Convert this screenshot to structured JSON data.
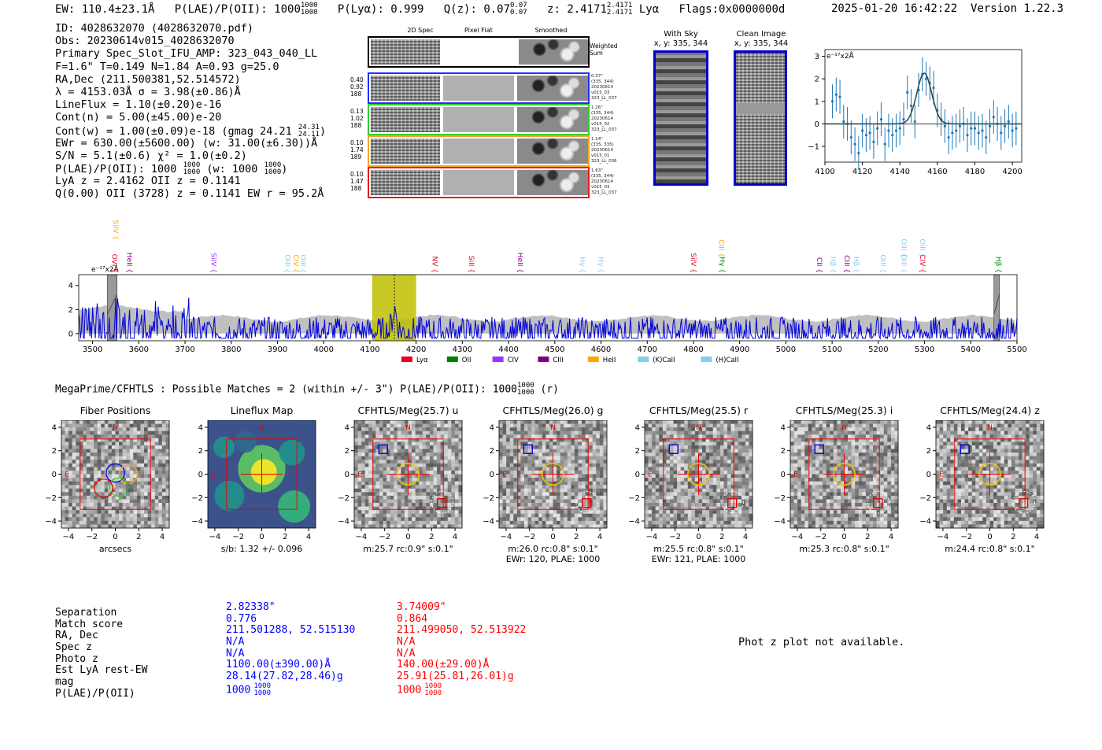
{
  "header": {
    "ew": "EW: 110.4±23.1Å",
    "plae": "P(LAE)/P(OII): 1000",
    "plae_hi": "1000",
    "plae_lo": "1000",
    "plya": "P(Lyα): 0.999",
    "qz": "Q(z): 0.07",
    "qz_hi": "0.07",
    "qz_lo": "0.07",
    "z": "z: 2.4171",
    "z_hi": "2.4171",
    "z_lo": "2.4171",
    "line": "Lyα",
    "flags": "Flags:0x0000000d",
    "datetime": "2025-01-20 16:42:22",
    "version": "Version 1.22.3"
  },
  "info": {
    "id": "ID: 4028632070 (4028632070.pdf)",
    "obs": "Obs: 20230614v015_4028632070",
    "primary": "Primary Spec_Slot_IFU_AMP: 323_043_040_LL",
    "fta": "F=1.6\"  T=0.149  N=1.84  A=0.93  g=25.0",
    "radec": "RA,Dec (211.500381,52.514572)",
    "lambda": "λ = 4153.03Å  σ = 3.98(±0.86)Å",
    "lineflux": "LineFlux = 1.10(±0.20)e-16",
    "contn": "Cont(n) = 5.00(±45.00)e-20",
    "contw": "Cont(w) = 1.00(±0.09)e-18 (gmag 24.21",
    "contw_hi": "24.31",
    "contw_lo": "24.11",
    "contw_end": ")",
    "ewr": "EWr = 630.00(±5600.00) (w: 31.00(±6.30))Å",
    "sn": "S/N = 5.1(±0.6)  χ² = 1.0(±0.2)",
    "plae": "P(LAE)/P(OII): 1000",
    "plae_hi": "1000",
    "plae_lo": "1000",
    "plae_w": "(w: 1000",
    "plae_w_hi": "1000",
    "plae_w_lo": "1000",
    "plae_w_end": ")",
    "lya": "LyA z = 2.4162  OII z = 0.1141",
    "q": "Q(0.00) OII (3728) z = 0.1141  EW r = 95.2Å"
  },
  "stamps": {
    "col_titles": [
      "2D Spec",
      "Pixel Flat",
      "Smoothed"
    ],
    "weighted": [
      "Weighted",
      "Sum"
    ],
    "rows": [
      {
        "labels": [
          "0.40",
          "0.92",
          "188"
        ],
        "info": [
          "0.37\"",
          "(335, 344)",
          "20230614",
          "v015_03",
          "323_LL_037"
        ],
        "color": "#1f2fff"
      },
      {
        "labels": [
          "0.13",
          "1.02",
          "188"
        ],
        "info": [
          "1.26\"",
          "(335, 344)",
          "20230614",
          "v015_02",
          "323_LL_037"
        ],
        "color": "#33cc33"
      },
      {
        "labels": [
          "0.10",
          "1.74",
          "189"
        ],
        "info": [
          "1.14\"",
          "(335, 335)",
          "20230614",
          "v015_01",
          "323_LL_036"
        ],
        "color": "#f5a623"
      },
      {
        "labels": [
          "0.10",
          "1.47",
          "188"
        ],
        "info": [
          "1.63\"",
          "(335, 344)",
          "20230614",
          "v015_03",
          "323_LL_037"
        ],
        "color": "#e81b1b"
      }
    ],
    "sky_title": [
      "With Sky",
      "x, y: 335, 344"
    ],
    "clean_title": [
      "Clean Image",
      "x, y: 335, 344"
    ]
  },
  "zoom_chart": {
    "unit_label": "e⁻¹⁷x2Å"
  },
  "spectrum": {
    "unit_label": "e⁻¹⁷x2Å",
    "legend": [
      {
        "name": "Lyα",
        "color": "#e8001c"
      },
      {
        "name": "OII",
        "color": "#008000"
      },
      {
        "name": "CIV",
        "color": "#9933ff"
      },
      {
        "name": "CIII",
        "color": "#800080"
      },
      {
        "name": "HeII",
        "color": "#ffa500"
      },
      {
        "name": "(K)CaII",
        "color": "#87ceeb"
      },
      {
        "name": "(H)CaII",
        "color": "#87ceeb"
      }
    ]
  },
  "chart_data": [
    {
      "type": "scatter",
      "title": "",
      "ylabel": "e⁻¹⁷x2Å",
      "xlim": [
        4100,
        4205
      ],
      "ylim": [
        -1.7,
        3.3
      ],
      "xticks": [
        4100,
        4120,
        4140,
        4160,
        4180,
        4200
      ],
      "yticks": [
        -1,
        0,
        1,
        2,
        3
      ],
      "x": [
        4104,
        4106,
        4108,
        4110,
        4112,
        4114,
        4116,
        4118,
        4120,
        4122,
        4124,
        4126,
        4128,
        4130,
        4132,
        4134,
        4136,
        4138,
        4140,
        4142,
        4144,
        4146,
        4148,
        4150,
        4152,
        4154,
        4156,
        4158,
        4160,
        4162,
        4164,
        4166,
        4168,
        4170,
        4172,
        4174,
        4176,
        4178,
        4180,
        4182,
        4184,
        4186,
        4188,
        4190,
        4192,
        4194,
        4196,
        4198,
        4200,
        4202
      ],
      "y": [
        1.0,
        1.3,
        1.2,
        0.1,
        0.0,
        -0.6,
        -0.9,
        -1.3,
        -0.3,
        -0.5,
        -0.4,
        -0.8,
        -0.2,
        0.2,
        -0.9,
        -0.3,
        -0.5,
        -0.3,
        -0.2,
        0.2,
        1.4,
        0.8,
        0.1,
        1.5,
        2.2,
        2.0,
        1.8,
        1.6,
        0.6,
        0.2,
        -0.1,
        -0.6,
        -0.4,
        -0.3,
        -0.1,
        0.0,
        -0.5,
        -0.2,
        -0.2,
        -0.4,
        -0.3,
        -0.6,
        -0.1,
        0.3,
        0.0,
        -0.4,
        -0.1,
        0.1,
        -0.3,
        -0.2
      ],
      "err": 0.75,
      "fit": {
        "center": 4153,
        "sigma": 3.98,
        "amp": 2.25,
        "baseline": 0.0
      }
    },
    {
      "type": "line",
      "title": "",
      "ylabel": "e⁻¹⁷x2Å",
      "xlim": [
        3470,
        5500
      ],
      "ylim": [
        -0.6,
        4.9
      ],
      "xticks": [
        3500,
        3600,
        3700,
        3800,
        3900,
        4000,
        4100,
        4200,
        4300,
        4400,
        4500,
        4600,
        4700,
        4800,
        4900,
        5000,
        5100,
        5200,
        5300,
        5400,
        5500
      ],
      "yticks": [
        0,
        2,
        4
      ],
      "highlight": {
        "x0": 4105,
        "x1": 4200,
        "color": "#bfbf00"
      },
      "marker": 4153,
      "masked": [
        {
          "x0": 3532,
          "x1": 3553
        },
        {
          "x0": 5450,
          "x1": 5462
        }
      ],
      "error_level": 1.2,
      "lines": [
        {
          "name": "OVI",
          "x": 3537,
          "color": "#e8001c",
          "row": 2
        },
        {
          "name": "SiIV",
          "x": 3540,
          "color": "#ffa500",
          "row": 0
        },
        {
          "name": "HeII",
          "x": 3570,
          "color": "#800080",
          "row": 2
        },
        {
          "name": "SiIV",
          "x": 3752,
          "color": "#9933ff",
          "row": 2
        },
        {
          "name": "OIII",
          "x": 3912,
          "color": "#87ceeb",
          "row": 2
        },
        {
          "name": "CIV",
          "x": 3930,
          "color": "#ffa500",
          "row": 2
        },
        {
          "name": "OIII",
          "x": 3945,
          "color": "#87ceeb",
          "row": 2
        },
        {
          "name": "NV",
          "x": 4230,
          "color": "#e8001c",
          "row": 2
        },
        {
          "name": "SiII",
          "x": 4310,
          "color": "#e8001c",
          "row": 2
        },
        {
          "name": "HeII",
          "x": 4415,
          "color": "#800080",
          "row": 2
        },
        {
          "name": "Hγ",
          "x": 4550,
          "color": "#87ceeb",
          "row": 2
        },
        {
          "name": "Hγ",
          "x": 4590,
          "color": "#87ceeb",
          "row": 2
        },
        {
          "name": "SiIV",
          "x": 4790,
          "color": "#e8001c",
          "row": 2
        },
        {
          "name": "Hγ",
          "x": 4852,
          "color": "#008000",
          "row": 2
        },
        {
          "name": "CIII",
          "x": 4850,
          "color": "#ffa500",
          "row": 1
        },
        {
          "name": "CII",
          "x": 5062,
          "color": "#800080",
          "row": 2
        },
        {
          "name": "Hβ",
          "x": 5092,
          "color": "#87ceeb",
          "row": 2
        },
        {
          "name": "CIII",
          "x": 5122,
          "color": "#800080",
          "row": 2
        },
        {
          "name": "Hβ",
          "x": 5142,
          "color": "#87ceeb",
          "row": 2
        },
        {
          "name": "OIII",
          "x": 5200,
          "color": "#87ceeb",
          "row": 2
        },
        {
          "name": "OIII",
          "x": 5245,
          "color": "#87ceeb",
          "row": 2
        },
        {
          "name": "CIV",
          "x": 5285,
          "color": "#e8001c",
          "row": 2
        },
        {
          "name": "OIII",
          "x": 5245,
          "color": "#87ceeb",
          "row": 1
        },
        {
          "name": "OIII",
          "x": 5285,
          "color": "#87ceeb",
          "row": 1
        },
        {
          "name": "Hβ",
          "x": 5450,
          "color": "#008000",
          "row": 2
        }
      ]
    }
  ],
  "match_line": {
    "text": "MegaPrime/CFHTLS : Possible Matches = 2 (within +/- 3\")  P(LAE)/P(OII): 1000",
    "hi": "1000",
    "lo": "1000",
    "end": " (r)"
  },
  "cutouts": [
    {
      "title": "Fiber Positions",
      "caption": [
        "arcsecs"
      ],
      "kind": "fiber"
    },
    {
      "title": "Lineflux Map",
      "caption": [
        "s/b: 1.32 +/- 0.096"
      ],
      "kind": "flux"
    },
    {
      "title": "CFHTLS/Meg(25.7) u",
      "caption": [
        "m:25.7 rc:0.9\"  s:0.1\""
      ],
      "kind": "cut"
    },
    {
      "title": "CFHTLS/Meg(26.0) g",
      "caption": [
        "m:26.0 rc:0.8\"  s:0.1\"",
        "EWr: 120, PLAE: 1000"
      ],
      "kind": "cut"
    },
    {
      "title": "CFHTLS/Meg(25.5) r",
      "caption": [
        "m:25.5 rc:0.8\"  s:0.1\"",
        "EWr: 121, PLAE: 1000"
      ],
      "kind": "cut"
    },
    {
      "title": "CFHTLS/Meg(25.3) i",
      "caption": [
        "m:25.3 rc:0.8\"  s:0.1\""
      ],
      "kind": "cut"
    },
    {
      "title": "CFHTLS/Meg(24.4) z",
      "caption": [
        "m:24.4 rc:0.8\"  s:0.1\""
      ],
      "kind": "cut"
    }
  ],
  "cutout_axes": {
    "ticks": [
      "-4",
      "-2",
      "0",
      "2",
      "4"
    ],
    "north": "N",
    "east": "E"
  },
  "match_table": {
    "labels": [
      "Separation",
      "Match score",
      "RA, Dec",
      "Spec z",
      "Photo z",
      "Est LyA rest-EW",
      "mag",
      "P(LAE)/P(OII)"
    ],
    "col1": [
      "2.82338\"",
      "0.776",
      "211.501288, 52.515130",
      "N/A",
      "N/A",
      "1100.00(±390.00)Å",
      "28.14(27.82,28.46)g",
      "1000"
    ],
    "col1_frac": [
      "1000",
      "1000"
    ],
    "col2": [
      "3.74009\"",
      "0.864",
      "211.499050, 52.513922",
      "N/A",
      "N/A",
      "140.00(±29.00)Å",
      "25.91(25.81,26.01)g",
      "1000"
    ],
    "col2_frac": [
      "1000",
      "1000"
    ],
    "col1_color": "#0000ff",
    "col2_color": "#ff0000"
  },
  "photz": "Phot z plot not available."
}
